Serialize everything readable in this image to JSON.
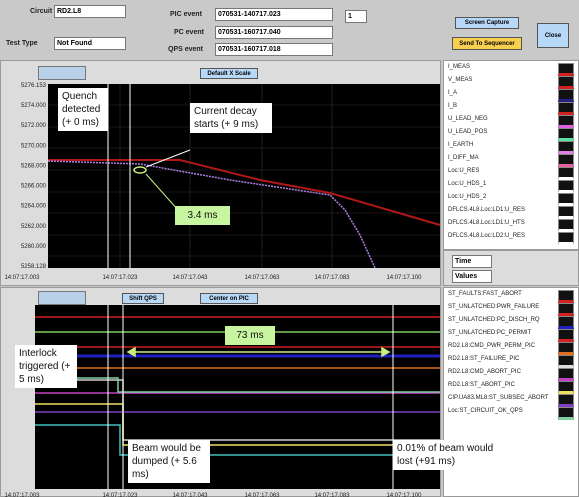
{
  "header": {
    "circuit_label": "Circuit",
    "circuit": "RD2.L8",
    "test_type_label": "Test Type",
    "test_type": "Not Found",
    "pic_event_label": "PIC event",
    "pic_event": "070531-140717.023",
    "pc_event_label": "PC event",
    "pc_event": "070531-160717.040",
    "qps_event_label": "QPS event",
    "qps_event": "070531-160717.018",
    "spinner": "1",
    "buttons": [
      "Screen Capture",
      "Send To Sequencer",
      "Close"
    ]
  },
  "top_plot": {
    "button": "Default X Scale",
    "y_ticks": [
      "5276.153",
      "5274.000",
      "5272.000",
      "5270.000",
      "5268.000",
      "5266.000",
      "5264.000",
      "5262.000",
      "5260.000",
      "5258.128"
    ],
    "x_ticks": [
      "14:07:17.003",
      "14:07:17.023",
      "14:07:17.043",
      "14:07:17.063",
      "14:07:17.083",
      "14:07:17.100"
    ],
    "annotations": [
      "Quench detected (+ 0 ms)",
      "Current decay starts (+ 9 ms)",
      "3.4 ms"
    ]
  },
  "top_legend": [
    "I_MEAS",
    "V_MEAS",
    "I_A",
    "I_B",
    "U_LEAD_NEG",
    "U_LEAD_POS",
    "I_EARTH",
    "I_DIFF_MA",
    "Loc:U_RES",
    "Loc:U_HDS_1",
    "Loc:U_HDS_2",
    "DFLCS.4L8.Loc:LD1:U_RES",
    "DFLCS.4L8.Loc:LD1:U_HTS",
    "DFLCS.4L8.Loc:LD2:U_RES"
  ],
  "controls": [
    "Time",
    "Values"
  ],
  "bottom_plot": {
    "buttons": [
      "Shift QPS",
      "Center on PIC"
    ],
    "x_ticks": [
      "14:07:17.003",
      "14:07:17.023",
      "14:07:17.043",
      "14:07:17.063",
      "14:07:17.083",
      "14:07:17.100"
    ],
    "annotations": [
      "73 ms",
      "Interlock triggered (+ 5 ms)",
      "Beam would be dumped (+ 5.6 ms)",
      "0.01% of beam would lost (+91 ms)"
    ]
  },
  "bottom_legend": [
    "ST_FAULTS:FAST_ABORT",
    "ST_UNLATCHED:PWR_FAILURE",
    "ST_UNLATCHED:PC_DISCH_RQ",
    "ST_UNLATCHED:PC_PERMIT",
    "RD2.L8:CMD_PWR_PERM_PIC",
    "RD2.L8:ST_FAILURE_PIC",
    "RD2.L8:CMD_ABORT_PIC",
    "RD2.L8:ST_ABORT_PIC",
    "CIP.UA83.ML8:ST_SUBSEC_ABORT",
    "Loc:ST_CIRCUIT_OK_QPS"
  ]
}
